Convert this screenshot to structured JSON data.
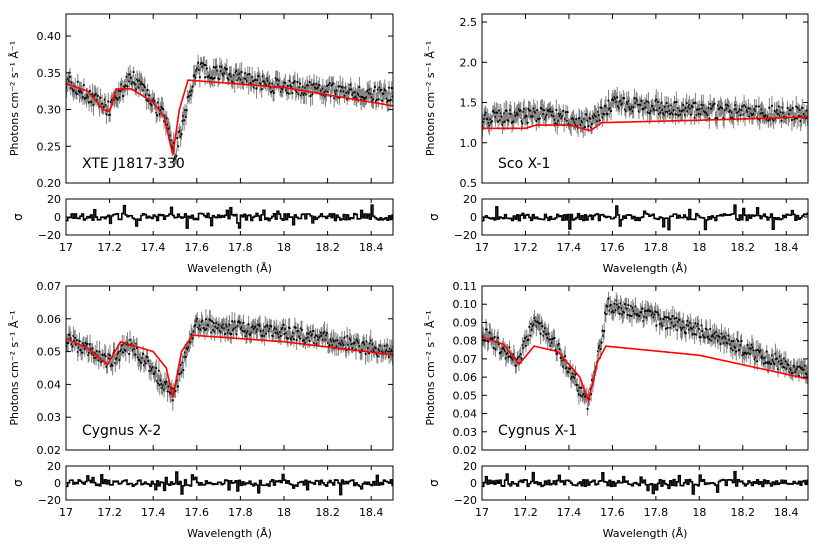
{
  "figure": {
    "x_label": "Wavelength (Å)",
    "y_label": "Photons cm⁻² s⁻¹ Å⁻¹",
    "residual_label": "σ",
    "x_ticks": [
      "17",
      "17.2",
      "17.4",
      "17.6",
      "17.8",
      "18",
      "18.2",
      "18.4"
    ],
    "residual_ticks": [
      "20",
      "0",
      "−20"
    ],
    "colors": {
      "model": "#ff0000",
      "data": "#000000",
      "error": "#808080"
    }
  },
  "chart_data": [
    {
      "type": "line",
      "name": "XTE J1817-330",
      "xlim": [
        17.0,
        18.5
      ],
      "ylim": [
        0.2,
        0.43
      ],
      "y_ticks": [
        "0.20",
        "0.25",
        "0.30",
        "0.35",
        "0.40"
      ],
      "model": {
        "x": [
          17.0,
          17.1,
          17.17,
          17.2,
          17.23,
          17.3,
          17.4,
          17.45,
          17.49,
          17.52,
          17.56,
          18.0,
          18.5
        ],
        "y": [
          0.335,
          0.325,
          0.3,
          0.297,
          0.328,
          0.328,
          0.31,
          0.29,
          0.238,
          0.3,
          0.34,
          0.33,
          0.305
        ]
      },
      "data_mean": {
        "x": [
          17.0,
          17.2,
          17.3,
          17.45,
          17.5,
          17.6,
          18.0,
          18.5
        ],
        "y": [
          0.34,
          0.3,
          0.345,
          0.29,
          0.24,
          0.355,
          0.33,
          0.32
        ]
      },
      "residual_range": [
        -20,
        20
      ]
    },
    {
      "type": "line",
      "name": "Sco X-1",
      "xlim": [
        17.0,
        18.5
      ],
      "ylim": [
        0.5,
        2.6
      ],
      "y_ticks": [
        "0.5",
        "1.0",
        "1.5",
        "2.0",
        "2.5"
      ],
      "model": {
        "x": [
          17.0,
          17.2,
          17.25,
          17.4,
          17.5,
          17.55,
          18.0,
          18.5
        ],
        "y": [
          1.18,
          1.18,
          1.22,
          1.22,
          1.15,
          1.25,
          1.28,
          1.32
        ]
      },
      "data_mean": {
        "x": [
          17.0,
          17.3,
          17.5,
          17.6,
          18.0,
          18.5
        ],
        "y": [
          1.3,
          1.35,
          1.25,
          1.5,
          1.4,
          1.35
        ]
      },
      "residual_range": [
        -20,
        20
      ]
    },
    {
      "type": "line",
      "name": "Cygnus X-2",
      "xlim": [
        17.0,
        18.5
      ],
      "ylim": [
        0.02,
        0.07
      ],
      "y_ticks": [
        "0.02",
        "0.03",
        "0.04",
        "0.05",
        "0.06",
        "0.07"
      ],
      "model": {
        "x": [
          17.0,
          17.1,
          17.19,
          17.25,
          17.4,
          17.46,
          17.49,
          17.53,
          17.58,
          18.0,
          18.5
        ],
        "y": [
          0.054,
          0.051,
          0.046,
          0.053,
          0.05,
          0.045,
          0.036,
          0.05,
          0.055,
          0.053,
          0.049
        ]
      },
      "data_mean": {
        "x": [
          17.0,
          17.2,
          17.3,
          17.49,
          17.6,
          18.0,
          18.5
        ],
        "y": [
          0.054,
          0.047,
          0.052,
          0.037,
          0.058,
          0.056,
          0.05
        ]
      },
      "residual_range": [
        -20,
        20
      ]
    },
    {
      "type": "line",
      "name": "Cygnus X-1",
      "xlim": [
        17.0,
        18.5
      ],
      "ylim": [
        0.02,
        0.11
      ],
      "y_ticks": [
        "0.02",
        "0.03",
        "0.04",
        "0.05",
        "0.06",
        "0.07",
        "0.08",
        "0.09",
        "0.10",
        "0.11"
      ],
      "model": {
        "x": [
          17.0,
          17.1,
          17.17,
          17.24,
          17.35,
          17.45,
          17.49,
          17.53,
          17.57,
          18.0,
          18.5
        ],
        "y": [
          0.082,
          0.078,
          0.067,
          0.077,
          0.074,
          0.06,
          0.047,
          0.068,
          0.077,
          0.072,
          0.059
        ]
      },
      "data_mean": {
        "x": [
          17.0,
          17.17,
          17.24,
          17.35,
          17.49,
          17.58,
          18.0,
          18.5
        ],
        "y": [
          0.085,
          0.068,
          0.092,
          0.075,
          0.045,
          0.1,
          0.085,
          0.062
        ]
      },
      "residual_range": [
        -20,
        20
      ]
    }
  ]
}
